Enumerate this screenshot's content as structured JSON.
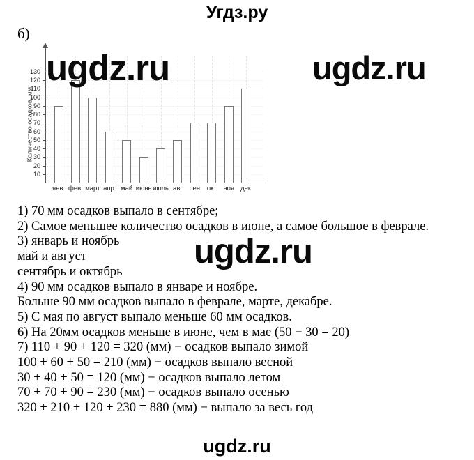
{
  "page": {
    "header_watermark": "Угдз.ру",
    "part_label": "б)",
    "chart_watermark": "ugdz.ru",
    "right_watermark": "ugdz.ru",
    "middle_watermark": "ugdz.ru",
    "footer_watermark": "ugdz.ru"
  },
  "chart_data": {
    "type": "bar",
    "title": "",
    "xlabel": "",
    "ylabel": "Количество осадков, мм",
    "categories": [
      "янв.",
      "фев.",
      "март",
      "апр.",
      "май",
      "июнь",
      "июль",
      "авг",
      "сен",
      "окт",
      "ноя",
      "дек"
    ],
    "values": [
      90,
      120,
      100,
      60,
      50,
      30,
      40,
      50,
      70,
      70,
      90,
      110
    ],
    "yticks": [
      10,
      20,
      30,
      40,
      50,
      60,
      70,
      80,
      90,
      100,
      110,
      120,
      130
    ],
    "ylim": [
      0,
      140
    ],
    "bar_fill": "#ffffff",
    "bar_outline": "#777777",
    "grid": "faint dotted",
    "legend": "none"
  },
  "answers": {
    "lines": [
      "1) 70 мм осадков выпало в сентябре;",
      "2) Самое меньшее количество осадков в июне, а самое большое в феврале.",
      "3) январь и ноябрь",
      "май и август",
      "сентябрь и октябрь",
      "4) 90 мм осадков выпало в январе и ноябре.",
      "Больше 90 мм осадков выпало в феврале, марте, декабре.",
      "5) С мая по август выпало меньше 60 мм осадков.",
      "6) На 20мм осадков меньше в июне, чем в мае (50 − 30 = 20)",
      "7) 110 + 90 + 120 = 320 (мм) − осадков выпало зимой",
      "100 + 60 + 50 = 210 (мм) − осадков выпало весной",
      "30 + 40 + 50 = 120 (мм) − осадков выпало летом",
      "70 + 70 + 90 = 230 (мм) − осадков выпало осенью",
      "320 + 210 + 120 + 230 = 880 (мм) − выпало за весь год"
    ]
  }
}
